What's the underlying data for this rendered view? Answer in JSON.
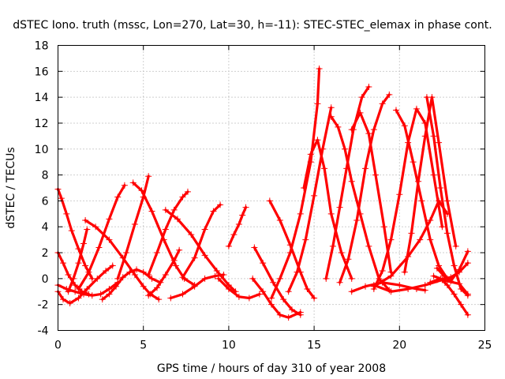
{
  "chart_data": {
    "type": "scatter",
    "title": "dSTEC Iono. truth (mssc, Lon=270, Lat=30, h=-11): STEC-STEC_elemax in phase cont.",
    "xlabel": "GPS time / hours of day 310 of year 2008",
    "ylabel": "dSTEC  / TECUs",
    "xlim": [
      0,
      25
    ],
    "ylim": [
      -4,
      18
    ],
    "xticks": [
      0,
      5,
      10,
      15,
      20,
      25
    ],
    "yticks": [
      -4,
      -2,
      0,
      2,
      4,
      6,
      8,
      10,
      12,
      14,
      16,
      18
    ],
    "grid": true,
    "marker": "+",
    "color": "#ff0000",
    "series": [
      {
        "x": [
          0.0,
          0.3,
          0.7,
          1.2,
          1.7,
          2.3,
          2.8,
          3.2
        ],
        "y": [
          -1.0,
          -1.6,
          -1.9,
          -1.5,
          -0.8,
          0.0,
          0.6,
          1.0
        ]
      },
      {
        "x": [
          0.0,
          0.2,
          0.5,
          0.8,
          1.2,
          1.6,
          2.0
        ],
        "y": [
          6.9,
          6.2,
          5.0,
          3.7,
          2.3,
          1.0,
          0.0
        ]
      },
      {
        "x": [
          0.0,
          0.3,
          0.6,
          1.0,
          1.4,
          1.8
        ],
        "y": [
          2.0,
          1.2,
          0.3,
          -0.5,
          -1.0,
          -1.2
        ]
      },
      {
        "x": [
          0.0,
          0.5,
          1.0,
          1.5,
          2.0,
          2.5,
          3.0,
          3.5
        ],
        "y": [
          -0.5,
          -0.8,
          -1.0,
          -1.2,
          -1.3,
          -1.2,
          -0.8,
          -0.3
        ]
      },
      {
        "x": [
          0.6,
          0.9,
          1.2,
          1.5,
          1.7
        ],
        "y": [
          -1.0,
          0.0,
          1.2,
          2.7,
          3.8
        ]
      },
      {
        "x": [
          1.6,
          2.2,
          3.0,
          3.8,
          4.5,
          5.0,
          5.4,
          5.9
        ],
        "y": [
          4.5,
          4.0,
          3.0,
          1.6,
          0.3,
          -0.6,
          -1.2,
          -1.6
        ]
      },
      {
        "x": [
          1.2,
          1.8,
          2.4,
          3.0,
          3.5,
          3.9
        ],
        "y": [
          -0.8,
          0.5,
          2.4,
          4.6,
          6.3,
          7.2
        ]
      },
      {
        "x": [
          2.6,
          3.0,
          3.4,
          3.8,
          4.2,
          4.6,
          5.0,
          5.5,
          6.0
        ],
        "y": [
          -1.6,
          -1.2,
          -0.6,
          0.1,
          0.5,
          0.7,
          0.5,
          0.0,
          -0.3
        ]
      },
      {
        "x": [
          4.4,
          4.9,
          5.5,
          6.2,
          6.9,
          7.4,
          8.0
        ],
        "y": [
          7.4,
          6.8,
          5.2,
          3.0,
          1.0,
          0.0,
          -0.5
        ]
      },
      {
        "x": [
          3.5,
          4.0,
          4.5,
          5.0,
          5.3
        ],
        "y": [
          0.0,
          2.0,
          4.2,
          6.3,
          7.9
        ]
      },
      {
        "x": [
          5.3,
          5.8,
          6.3,
          6.8,
          7.1
        ],
        "y": [
          -1.3,
          -0.7,
          0.3,
          1.4,
          2.2
        ]
      },
      {
        "x": [
          5.3,
          5.8,
          6.3,
          6.8,
          7.3,
          7.6
        ],
        "y": [
          0.3,
          2.0,
          3.8,
          5.3,
          6.3,
          6.7
        ]
      },
      {
        "x": [
          6.3,
          7.0,
          7.8,
          8.6,
          9.3,
          10.0,
          10.4
        ],
        "y": [
          5.3,
          4.6,
          3.4,
          1.8,
          0.6,
          -0.5,
          -1.0
        ]
      },
      {
        "x": [
          7.3,
          8.0,
          8.6,
          9.1,
          9.5
        ],
        "y": [
          0.1,
          1.6,
          3.8,
          5.2,
          5.7
        ]
      },
      {
        "x": [
          6.6,
          7.3,
          8.0,
          8.6,
          9.2,
          9.7
        ],
        "y": [
          -1.5,
          -1.2,
          -0.6,
          0.0,
          0.2,
          0.3
        ]
      },
      {
        "x": [
          9.4,
          10.0,
          10.6,
          11.2,
          11.8
        ],
        "y": [
          0.0,
          -0.8,
          -1.4,
          -1.5,
          -1.2
        ]
      },
      {
        "x": [
          10.0,
          10.3,
          10.6,
          10.8,
          11.0
        ],
        "y": [
          2.5,
          3.4,
          4.2,
          4.9,
          5.5
        ]
      },
      {
        "x": [
          11.5,
          12.0,
          12.6,
          13.2,
          13.7,
          14.2
        ],
        "y": [
          2.4,
          1.2,
          -0.3,
          -1.6,
          -2.4,
          -2.8
        ]
      },
      {
        "x": [
          11.4,
          12.0,
          12.5,
          13.0,
          13.5,
          14.2
        ],
        "y": [
          0.0,
          -1.0,
          -2.0,
          -2.8,
          -3.0,
          -2.6
        ]
      },
      {
        "x": [
          12.5,
          13.0,
          13.6,
          14.2,
          14.8,
          15.2,
          15.3
        ],
        "y": [
          -1.5,
          0.0,
          2.0,
          5.0,
          9.0,
          13.5,
          16.2
        ]
      },
      {
        "x": [
          12.4,
          13.0,
          13.6,
          14.2,
          14.6,
          15.0
        ],
        "y": [
          6.0,
          4.5,
          2.6,
          0.5,
          -0.8,
          -1.5
        ]
      },
      {
        "x": [
          13.5,
          14.0,
          14.5,
          15.0,
          15.5,
          16.0
        ],
        "y": [
          -1.0,
          0.5,
          3.0,
          6.4,
          10.0,
          13.2
        ]
      },
      {
        "x": [
          14.4,
          14.8,
          15.2,
          15.6,
          16.0,
          16.6,
          17.2
        ],
        "y": [
          7.0,
          9.6,
          10.7,
          8.5,
          5.0,
          2.0,
          0.0
        ]
      },
      {
        "x": [
          15.7,
          16.1,
          16.5,
          16.9,
          17.3,
          17.8,
          18.2
        ],
        "y": [
          0.0,
          2.5,
          5.5,
          8.5,
          11.5,
          14.0,
          14.8
        ]
      },
      {
        "x": [
          16.0,
          16.4,
          16.8,
          17.2,
          17.7,
          18.2,
          18.8,
          19.4
        ],
        "y": [
          12.5,
          11.7,
          10.0,
          7.5,
          5.0,
          2.5,
          0.0,
          -0.9
        ]
      },
      {
        "x": [
          16.5,
          17.0,
          17.5,
          18.0,
          18.5,
          19.0,
          19.4
        ],
        "y": [
          -0.3,
          1.5,
          4.5,
          8.5,
          11.5,
          13.5,
          14.2
        ]
      },
      {
        "x": [
          17.2,
          17.7,
          18.2,
          18.6,
          19.1,
          19.5
        ],
        "y": [
          11.5,
          12.8,
          11.2,
          8.0,
          4.0,
          0.5
        ]
      },
      {
        "x": [
          18.5,
          19.0,
          19.5,
          20.0,
          20.5,
          21.0,
          21.5,
          22.0,
          22.5
        ],
        "y": [
          -0.8,
          0.6,
          3.0,
          6.5,
          10.5,
          13.1,
          12.0,
          8.0,
          4.0
        ]
      },
      {
        "x": [
          19.8,
          20.3,
          20.8,
          21.3,
          21.8,
          22.3,
          22.8
        ],
        "y": [
          13.0,
          11.8,
          9.0,
          6.0,
          3.0,
          1.0,
          0.0
        ]
      },
      {
        "x": [
          20.3,
          20.7,
          21.1,
          21.5,
          21.9,
          22.3,
          22.8,
          23.3
        ],
        "y": [
          0.5,
          3.5,
          7.5,
          11.0,
          14.0,
          10.5,
          6.0,
          2.5
        ]
      },
      {
        "x": [
          21.6,
          22.0,
          22.4,
          22.8,
          23.2,
          23.6,
          24.0
        ],
        "y": [
          14.0,
          11.0,
          7.0,
          3.5,
          1.0,
          -0.8,
          -1.3
        ]
      },
      {
        "x": [
          22.0,
          22.4,
          22.8,
          23.2,
          23.6,
          24.0
        ],
        "y": [
          0.2,
          0.0,
          -0.5,
          -1.2,
          -2.0,
          -2.8
        ]
      },
      {
        "x": [
          21.8,
          22.2,
          22.6,
          23.0,
          23.5,
          24.0
        ],
        "y": [
          -0.3,
          -0.1,
          0.0,
          0.1,
          0.5,
          1.2
        ]
      },
      {
        "x": [
          22.2,
          22.6,
          23.0,
          23.5,
          24.0
        ],
        "y": [
          0.8,
          0.2,
          -0.2,
          0.7,
          2.1
        ]
      },
      {
        "x": [
          18.5,
          19.5,
          20.5,
          21.2,
          21.8,
          22.3,
          22.8
        ],
        "y": [
          -0.6,
          0.2,
          1.7,
          3.0,
          4.5,
          6.0,
          5.0
        ]
      },
      {
        "x": [
          17.2,
          18.0,
          19.0,
          20.0,
          21.0,
          21.5
        ],
        "y": [
          -1.0,
          -0.6,
          -0.3,
          -0.5,
          -0.8,
          -0.9
        ]
      },
      {
        "x": [
          18.5,
          19.5,
          20.5,
          21.5,
          22.5,
          23.5,
          24.0
        ],
        "y": [
          -0.5,
          -1.0,
          -0.8,
          -0.5,
          -0.1,
          -0.4,
          -1.2
        ]
      }
    ]
  }
}
